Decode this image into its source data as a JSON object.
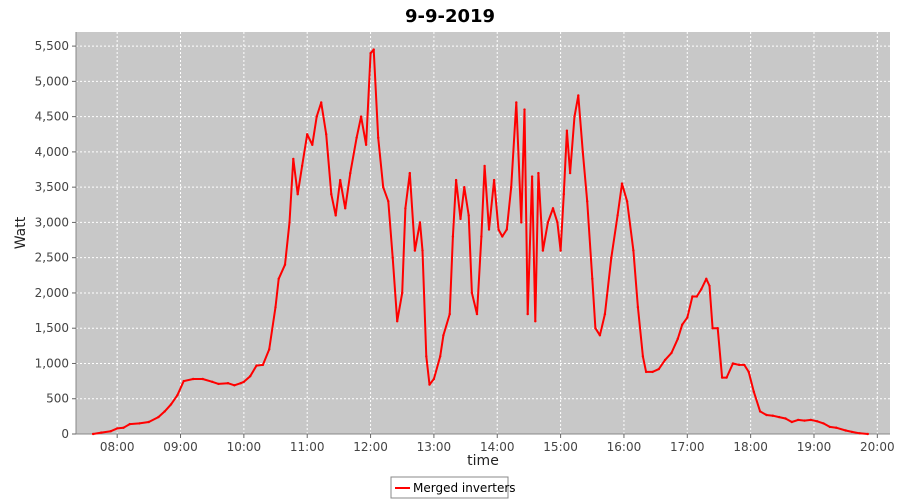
{
  "chart_data": {
    "type": "line",
    "title": "9-9-2019",
    "xlabel": "time",
    "ylabel": "Watt",
    "x_unit": "hours of day",
    "xlim": [
      7.35,
      20.2
    ],
    "ylim": [
      0,
      5700
    ],
    "x_ticks": [
      {
        "value": 8,
        "label": "08:00"
      },
      {
        "value": 9,
        "label": "09:00"
      },
      {
        "value": 10,
        "label": "10:00"
      },
      {
        "value": 11,
        "label": "11:00"
      },
      {
        "value": 12,
        "label": "12:00"
      },
      {
        "value": 13,
        "label": "13:00"
      },
      {
        "value": 14,
        "label": "14:00"
      },
      {
        "value": 15,
        "label": "15:00"
      },
      {
        "value": 16,
        "label": "16:00"
      },
      {
        "value": 17,
        "label": "17:00"
      },
      {
        "value": 18,
        "label": "18:00"
      },
      {
        "value": 19,
        "label": "19:00"
      },
      {
        "value": 20,
        "label": "20:00"
      }
    ],
    "y_ticks": [
      {
        "value": 0,
        "label": "0"
      },
      {
        "value": 500,
        "label": "500"
      },
      {
        "value": 1000,
        "label": "1,000"
      },
      {
        "value": 1500,
        "label": "1,500"
      },
      {
        "value": 2000,
        "label": "2,000"
      },
      {
        "value": 2500,
        "label": "2,500"
      },
      {
        "value": 3000,
        "label": "3,000"
      },
      {
        "value": 3500,
        "label": "3,500"
      },
      {
        "value": 4000,
        "label": "4,000"
      },
      {
        "value": 4500,
        "label": "4,500"
      },
      {
        "value": 5000,
        "label": "5,000"
      },
      {
        "value": 5500,
        "label": "5,500"
      }
    ],
    "grid": true,
    "legend_position": "bottom-center",
    "series": [
      {
        "name": "Merged inverters",
        "color": "#ff0000",
        "points": [
          [
            7.62,
            0
          ],
          [
            7.75,
            20
          ],
          [
            7.9,
            40
          ],
          [
            8.0,
            80
          ],
          [
            8.1,
            90
          ],
          [
            8.2,
            140
          ],
          [
            8.35,
            150
          ],
          [
            8.5,
            170
          ],
          [
            8.65,
            240
          ],
          [
            8.75,
            320
          ],
          [
            8.85,
            420
          ],
          [
            8.95,
            550
          ],
          [
            9.05,
            750
          ],
          [
            9.2,
            780
          ],
          [
            9.35,
            780
          ],
          [
            9.5,
            740
          ],
          [
            9.6,
            710
          ],
          [
            9.75,
            720
          ],
          [
            9.85,
            690
          ],
          [
            9.95,
            720
          ],
          [
            10.0,
            740
          ],
          [
            10.1,
            820
          ],
          [
            10.2,
            970
          ],
          [
            10.3,
            980
          ],
          [
            10.4,
            1200
          ],
          [
            10.5,
            1800
          ],
          [
            10.55,
            2200
          ],
          [
            10.65,
            2400
          ],
          [
            10.72,
            3000
          ],
          [
            10.78,
            3900
          ],
          [
            10.85,
            3400
          ],
          [
            10.92,
            3800
          ],
          [
            11.0,
            4250
          ],
          [
            11.08,
            4100
          ],
          [
            11.15,
            4500
          ],
          [
            11.22,
            4700
          ],
          [
            11.3,
            4250
          ],
          [
            11.38,
            3400
          ],
          [
            11.45,
            3100
          ],
          [
            11.52,
            3600
          ],
          [
            11.6,
            3200
          ],
          [
            11.68,
            3700
          ],
          [
            11.78,
            4200
          ],
          [
            11.85,
            4500
          ],
          [
            11.93,
            4100
          ],
          [
            12.0,
            5400
          ],
          [
            12.05,
            5450
          ],
          [
            12.12,
            4200
          ],
          [
            12.2,
            3500
          ],
          [
            12.28,
            3300
          ],
          [
            12.35,
            2500
          ],
          [
            12.42,
            1600
          ],
          [
            12.5,
            2000
          ],
          [
            12.55,
            3200
          ],
          [
            12.62,
            3700
          ],
          [
            12.7,
            2600
          ],
          [
            12.78,
            3000
          ],
          [
            12.82,
            2600
          ],
          [
            12.88,
            1100
          ],
          [
            12.93,
            700
          ],
          [
            13.0,
            780
          ],
          [
            13.1,
            1100
          ],
          [
            13.15,
            1400
          ],
          [
            13.25,
            1700
          ],
          [
            13.3,
            2800
          ],
          [
            13.35,
            3600
          ],
          [
            13.42,
            3050
          ],
          [
            13.48,
            3500
          ],
          [
            13.55,
            3100
          ],
          [
            13.6,
            2000
          ],
          [
            13.68,
            1700
          ],
          [
            13.75,
            2800
          ],
          [
            13.8,
            3800
          ],
          [
            13.87,
            2900
          ],
          [
            13.95,
            3600
          ],
          [
            14.02,
            2900
          ],
          [
            14.08,
            2800
          ],
          [
            14.15,
            2900
          ],
          [
            14.22,
            3500
          ],
          [
            14.3,
            4700
          ],
          [
            14.38,
            3000
          ],
          [
            14.43,
            4600
          ],
          [
            14.48,
            1700
          ],
          [
            14.55,
            3650
          ],
          [
            14.6,
            1600
          ],
          [
            14.65,
            3700
          ],
          [
            14.72,
            2600
          ],
          [
            14.8,
            3000
          ],
          [
            14.88,
            3200
          ],
          [
            14.95,
            3000
          ],
          [
            15.0,
            2600
          ],
          [
            15.05,
            3400
          ],
          [
            15.1,
            4300
          ],
          [
            15.15,
            3700
          ],
          [
            15.22,
            4500
          ],
          [
            15.28,
            4800
          ],
          [
            15.35,
            4000
          ],
          [
            15.42,
            3300
          ],
          [
            15.5,
            2200
          ],
          [
            15.55,
            1500
          ],
          [
            15.62,
            1400
          ],
          [
            15.7,
            1700
          ],
          [
            15.8,
            2500
          ],
          [
            15.9,
            3100
          ],
          [
            15.97,
            3550
          ],
          [
            16.05,
            3300
          ],
          [
            16.15,
            2600
          ],
          [
            16.22,
            1800
          ],
          [
            16.3,
            1100
          ],
          [
            16.35,
            880
          ],
          [
            16.45,
            880
          ],
          [
            16.55,
            920
          ],
          [
            16.65,
            1050
          ],
          [
            16.75,
            1150
          ],
          [
            16.85,
            1350
          ],
          [
            16.92,
            1550
          ],
          [
            17.0,
            1650
          ],
          [
            17.08,
            1950
          ],
          [
            17.15,
            1950
          ],
          [
            17.22,
            2050
          ],
          [
            17.3,
            2200
          ],
          [
            17.35,
            2100
          ],
          [
            17.4,
            1500
          ],
          [
            17.48,
            1500
          ],
          [
            17.55,
            800
          ],
          [
            17.62,
            800
          ],
          [
            17.72,
            1000
          ],
          [
            17.82,
            980
          ],
          [
            17.9,
            980
          ],
          [
            17.97,
            880
          ],
          [
            18.05,
            600
          ],
          [
            18.15,
            320
          ],
          [
            18.25,
            270
          ],
          [
            18.35,
            260
          ],
          [
            18.45,
            240
          ],
          [
            18.55,
            220
          ],
          [
            18.65,
            170
          ],
          [
            18.75,
            200
          ],
          [
            18.85,
            190
          ],
          [
            18.95,
            200
          ],
          [
            19.05,
            180
          ],
          [
            19.15,
            150
          ],
          [
            19.25,
            100
          ],
          [
            19.35,
            90
          ],
          [
            19.5,
            50
          ],
          [
            19.6,
            30
          ],
          [
            19.72,
            10
          ],
          [
            19.85,
            0
          ]
        ]
      }
    ]
  }
}
